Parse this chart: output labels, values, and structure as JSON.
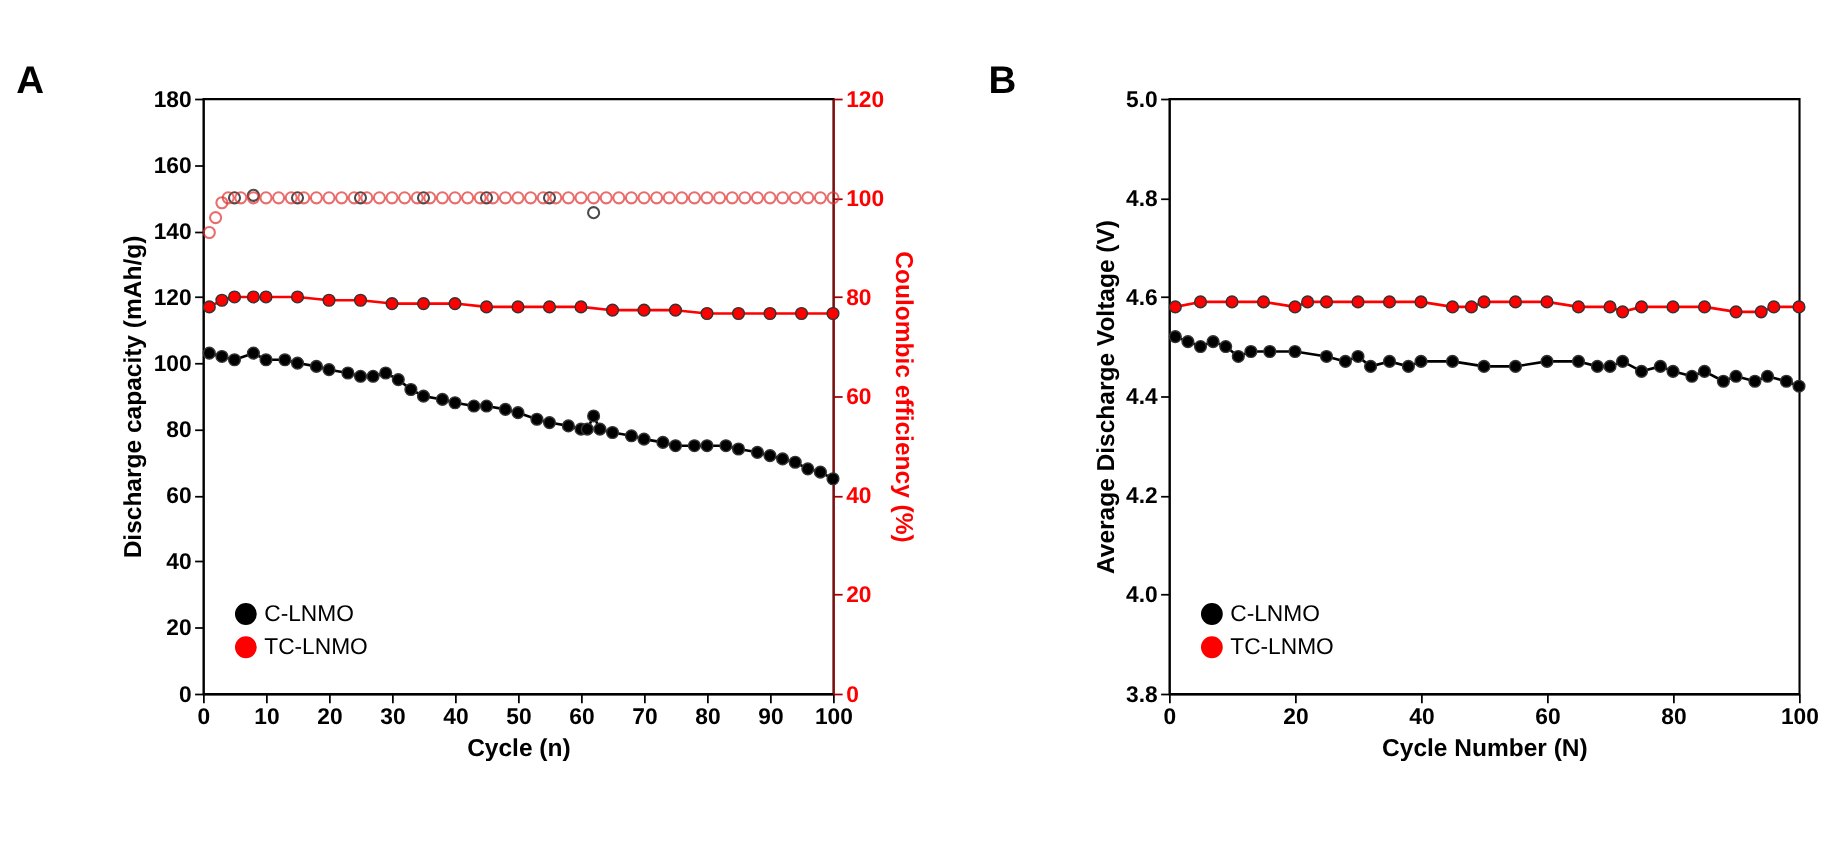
{
  "chart_data": [
    {
      "type": "line",
      "title": "A",
      "xlabel": "Cycle (n)",
      "ylabel": "Discharge capacity (mAh/g)",
      "y2label": "Coulombic efficiency (%)",
      "xlim": [
        0,
        100
      ],
      "xticks": [
        0,
        10,
        20,
        30,
        40,
        50,
        60,
        70,
        80,
        90,
        100
      ],
      "ylim": [
        0,
        180
      ],
      "yticks": [
        0,
        20,
        40,
        60,
        80,
        100,
        120,
        140,
        160,
        180
      ],
      "y2lim": [
        0,
        120
      ],
      "y2ticks": [
        0,
        20,
        40,
        60,
        80,
        100,
        120
      ],
      "grid": false,
      "legend": "bottom left",
      "marker": "circle",
      "line_style": "solid",
      "series": [
        {
          "name": "C-LNMO",
          "color": "#000000",
          "x": [
            1,
            3,
            5,
            8,
            10,
            13,
            15,
            18,
            20,
            23,
            25,
            27,
            29,
            31,
            33,
            35,
            38,
            40,
            43,
            45,
            48,
            50,
            53,
            55,
            58,
            60,
            61,
            62,
            63,
            65,
            68,
            70,
            73,
            75,
            78,
            80,
            83,
            85,
            88,
            90,
            92,
            94,
            96,
            98,
            100
          ],
          "values": [
            103,
            102,
            101,
            103,
            101,
            101,
            100,
            99,
            98,
            97,
            96,
            96,
            97,
            95,
            92,
            90,
            89,
            88,
            87,
            87,
            86,
            85,
            83,
            82,
            81,
            80,
            80,
            84,
            80,
            79,
            78,
            77,
            76,
            75,
            75,
            75,
            75,
            74,
            73,
            72,
            71,
            70,
            68,
            67,
            65
          ]
        },
        {
          "name": "TC-LNMO",
          "color": "#ff0000",
          "x": [
            1,
            3,
            5,
            8,
            10,
            15,
            20,
            25,
            30,
            35,
            40,
            45,
            50,
            55,
            60,
            65,
            70,
            75,
            80,
            85,
            90,
            95,
            100
          ],
          "values": [
            117,
            119,
            120,
            120,
            120,
            120,
            119,
            119,
            118,
            118,
            118,
            117,
            117,
            117,
            117,
            116,
            116,
            116,
            115,
            115,
            115,
            115,
            115
          ]
        },
        {
          "type": "scatter",
          "axis": "y2",
          "color": "#000000",
          "x": [
            5,
            8,
            15,
            25,
            35,
            45,
            55,
            62
          ],
          "values": [
            100,
            100.5,
            100,
            100,
            100,
            100,
            100,
            97
          ]
        },
        {
          "type": "scatter",
          "axis": "y2",
          "color": "#e03030",
          "x": [
            1,
            2,
            3,
            4,
            6,
            8,
            10,
            12,
            14,
            16,
            18,
            20,
            22,
            24,
            26,
            28,
            30,
            32,
            34,
            36,
            38,
            40,
            42,
            44,
            46,
            48,
            50,
            52,
            54,
            56,
            58,
            60,
            62,
            64,
            66,
            68,
            70,
            72,
            74,
            76,
            78,
            80,
            82,
            84,
            86,
            88,
            90,
            92,
            94,
            96,
            98,
            100
          ],
          "values": [
            93,
            96,
            99,
            100,
            100,
            100,
            100,
            100,
            100,
            100,
            100,
            100,
            100,
            100,
            100,
            100,
            100,
            100,
            100,
            100,
            100,
            100,
            100,
            100,
            100,
            100,
            100,
            100,
            100,
            100,
            100,
            100,
            100,
            100,
            100,
            100,
            100,
            100,
            100,
            100,
            100,
            100,
            100,
            100,
            100,
            100,
            100,
            100,
            100,
            100,
            100,
            100
          ]
        }
      ]
    },
    {
      "type": "line",
      "title": "B",
      "xlabel": "Cycle Number (N)",
      "ylabel": "Average Discharge  Voltage (V)",
      "xlim": [
        0,
        100
      ],
      "xticks": [
        0,
        20,
        40,
        60,
        80,
        100
      ],
      "ylim": [
        3.8,
        5.0
      ],
      "yticks": [
        3.8,
        {
          "value": 4,
          "label": "4.0"
        },
        4.2,
        4.4,
        4.6,
        4.8,
        {
          "value": 5,
          "label": "5.0"
        }
      ],
      "grid": false,
      "legend": "bottom left",
      "marker": "circle",
      "line_style": "solid",
      "series": [
        {
          "name": "C-LNMO",
          "color": "#000000",
          "x": [
            1,
            3,
            5,
            7,
            9,
            11,
            13,
            16,
            20,
            25,
            28,
            30,
            32,
            35,
            38,
            40,
            45,
            50,
            55,
            60,
            65,
            68,
            70,
            72,
            75,
            78,
            80,
            83,
            85,
            88,
            90,
            93,
            95,
            98,
            100
          ],
          "values": [
            4.52,
            4.51,
            4.5,
            4.51,
            4.5,
            4.48,
            4.49,
            4.49,
            4.49,
            4.48,
            4.47,
            4.48,
            4.46,
            4.47,
            4.46,
            4.47,
            4.47,
            4.46,
            4.46,
            4.47,
            4.47,
            4.46,
            4.46,
            4.47,
            4.45,
            4.46,
            4.45,
            4.44,
            4.45,
            4.43,
            4.44,
            4.43,
            4.44,
            4.43,
            4.42
          ]
        },
        {
          "name": "TC-LNMO",
          "color": "#ff0000",
          "x": [
            1,
            5,
            10,
            15,
            20,
            22,
            25,
            30,
            35,
            40,
            45,
            48,
            50,
            55,
            60,
            65,
            70,
            72,
            75,
            80,
            85,
            90,
            94,
            96,
            100
          ],
          "values": [
            4.58,
            4.59,
            4.59,
            4.59,
            4.58,
            4.59,
            4.59,
            4.59,
            4.59,
            4.59,
            4.58,
            4.58,
            4.59,
            4.59,
            4.59,
            4.58,
            4.58,
            4.57,
            4.58,
            4.58,
            4.58,
            4.57,
            4.57,
            4.58,
            4.58
          ]
        }
      ]
    }
  ]
}
